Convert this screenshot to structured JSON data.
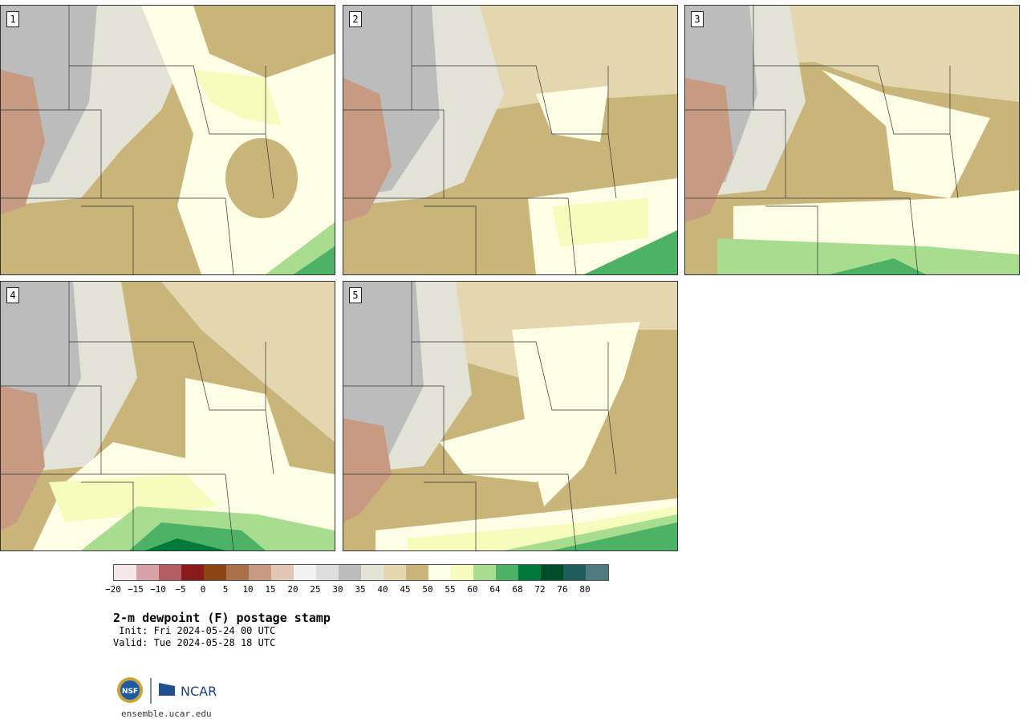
{
  "panels": [
    {
      "label": "1"
    },
    {
      "label": "2"
    },
    {
      "label": "3"
    },
    {
      "label": "4"
    },
    {
      "label": "5"
    }
  ],
  "colorbar": {
    "colors": [
      "#f6e8ea",
      "#d7a3a8",
      "#b35e63",
      "#8b1a1a",
      "#8a4513",
      "#a9704a",
      "#c79a82",
      "#e3c7b5",
      "#f2f2f2",
      "#dedede",
      "#bcbcbc",
      "#e2e2d6",
      "#e4d7b0",
      "#c9b47a",
      "#fefde6",
      "#f6fcbc",
      "#a8dd8f",
      "#4eb266",
      "#007a3a",
      "#004d2a",
      "#1f5c5c",
      "#4e7a80"
    ],
    "tick_labels": [
      "−20",
      "−15",
      "−10",
      "−5",
      "0",
      "5",
      "10",
      "15",
      "20",
      "25",
      "30",
      "35",
      "40",
      "45",
      "50",
      "55",
      "60",
      "64",
      "68",
      "72",
      "76",
      "80"
    ]
  },
  "title": "2-m dewpoint (F) postage stamp",
  "init": " Init: Fri 2024-05-24 00 UTC",
  "valid": "Valid: Tue 2024-05-28 18 UTC",
  "logo": {
    "nsf": "NSF",
    "ncar": "NCAR"
  },
  "site": "ensemble.ucar.edu"
}
